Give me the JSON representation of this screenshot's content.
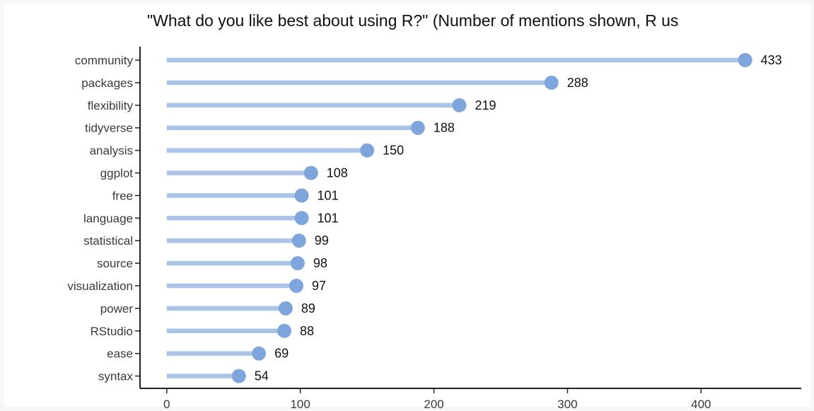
{
  "chart_data": {
    "type": "lollipop",
    "title": "\"What do you like best about using R?\" (Number of mentions shown, R us",
    "xlabel": "",
    "ylabel": "",
    "xlim": [
      -20,
      475
    ],
    "xticks": [
      "0",
      "100",
      "200",
      "300",
      "400"
    ],
    "grid": false,
    "legend": "none",
    "colors": {
      "stem": "#a9c4e8",
      "dot": "#7ea6dc",
      "axis": "#222222",
      "label": "#3a3a3a",
      "value": "#111111"
    },
    "categories": [
      "community",
      "packages",
      "flexibility",
      "tidyverse",
      "analysis",
      "ggplot",
      "free",
      "language",
      "statistical",
      "source",
      "visualization",
      "power",
      "RStudio",
      "ease",
      "syntax"
    ],
    "values": [
      433,
      288,
      219,
      188,
      150,
      108,
      101,
      101,
      99,
      98,
      97,
      89,
      88,
      69,
      54
    ],
    "value_labels": [
      "433",
      "288",
      "219",
      "188",
      "150",
      "108",
      "101",
      "101",
      "99",
      "98",
      "97",
      "89",
      "88",
      "69",
      "54"
    ]
  }
}
